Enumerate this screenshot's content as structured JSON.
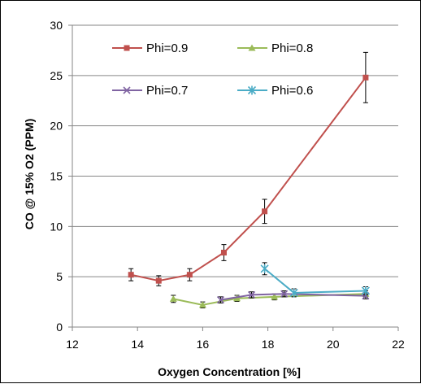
{
  "chart_data": {
    "type": "line",
    "title": "",
    "xlabel": "Oxygen Concentration [%]",
    "ylabel": "CO @ 15% O2  (PPM)",
    "xlim": [
      12,
      22
    ],
    "ylim": [
      0,
      30
    ],
    "xticks": [
      "12",
      "14",
      "16",
      "18",
      "20",
      "22"
    ],
    "yticks": [
      "0",
      "5",
      "10",
      "15",
      "20",
      "25",
      "30"
    ],
    "grid": "horizontal",
    "legend": "top, inside plot, two columns",
    "series": [
      {
        "name": "Phi=0.9",
        "color": "#c0504d",
        "marker": "square",
        "x": [
          13.8,
          14.65,
          15.6,
          16.65,
          17.9,
          21.0
        ],
        "y": [
          5.2,
          4.6,
          5.2,
          7.4,
          11.5,
          24.8
        ],
        "err": [
          0.6,
          0.5,
          0.6,
          0.8,
          1.2,
          2.5
        ]
      },
      {
        "name": "Phi=0.8",
        "color": "#9bbb59",
        "marker": "triangle",
        "x": [
          15.1,
          16.0,
          17.05,
          18.2,
          21.0
        ],
        "y": [
          2.8,
          2.2,
          2.85,
          3.0,
          3.3
        ],
        "err": [
          0.35,
          0.3,
          0.3,
          0.3,
          0.3
        ]
      },
      {
        "name": "Phi=0.7",
        "color": "#8064a2",
        "marker": "x",
        "x": [
          16.55,
          17.5,
          18.5,
          21.0
        ],
        "y": [
          2.7,
          3.2,
          3.3,
          3.1
        ],
        "err": [
          0.3,
          0.3,
          0.3,
          0.3
        ]
      },
      {
        "name": "Phi=0.6",
        "color": "#4bacc6",
        "marker": "star",
        "x": [
          17.9,
          18.8,
          21.0
        ],
        "y": [
          5.8,
          3.4,
          3.6
        ],
        "err": [
          0.6,
          0.4,
          0.4
        ]
      }
    ]
  }
}
